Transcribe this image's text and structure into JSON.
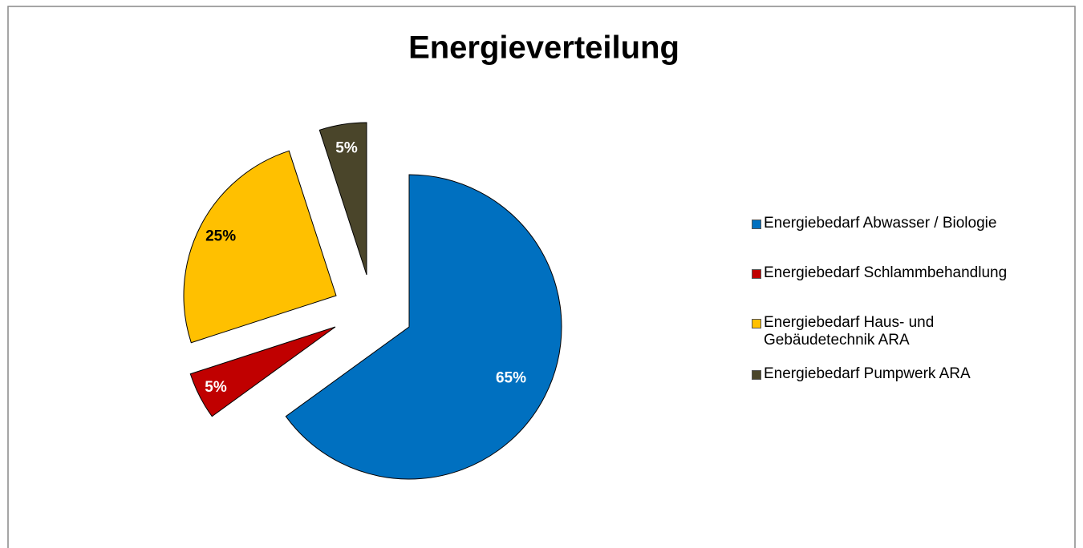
{
  "chart_data": {
    "type": "pie",
    "title": "Energieverteilung",
    "categories": [
      "Energiebedarf Abwasser / Biologie",
      "Energiebedarf Schlammbehandlung",
      "Energiebedarf Haus- und Gebäudetechnik ARA",
      "Energiebedarf Pumpwerk ARA"
    ],
    "values": [
      65,
      5,
      25,
      5
    ],
    "value_labels": [
      "65%",
      "5%",
      "25%",
      "5%"
    ],
    "colors": [
      "#0070c0",
      "#c00000",
      "#ffc000",
      "#4a452a"
    ],
    "legend": "right"
  }
}
